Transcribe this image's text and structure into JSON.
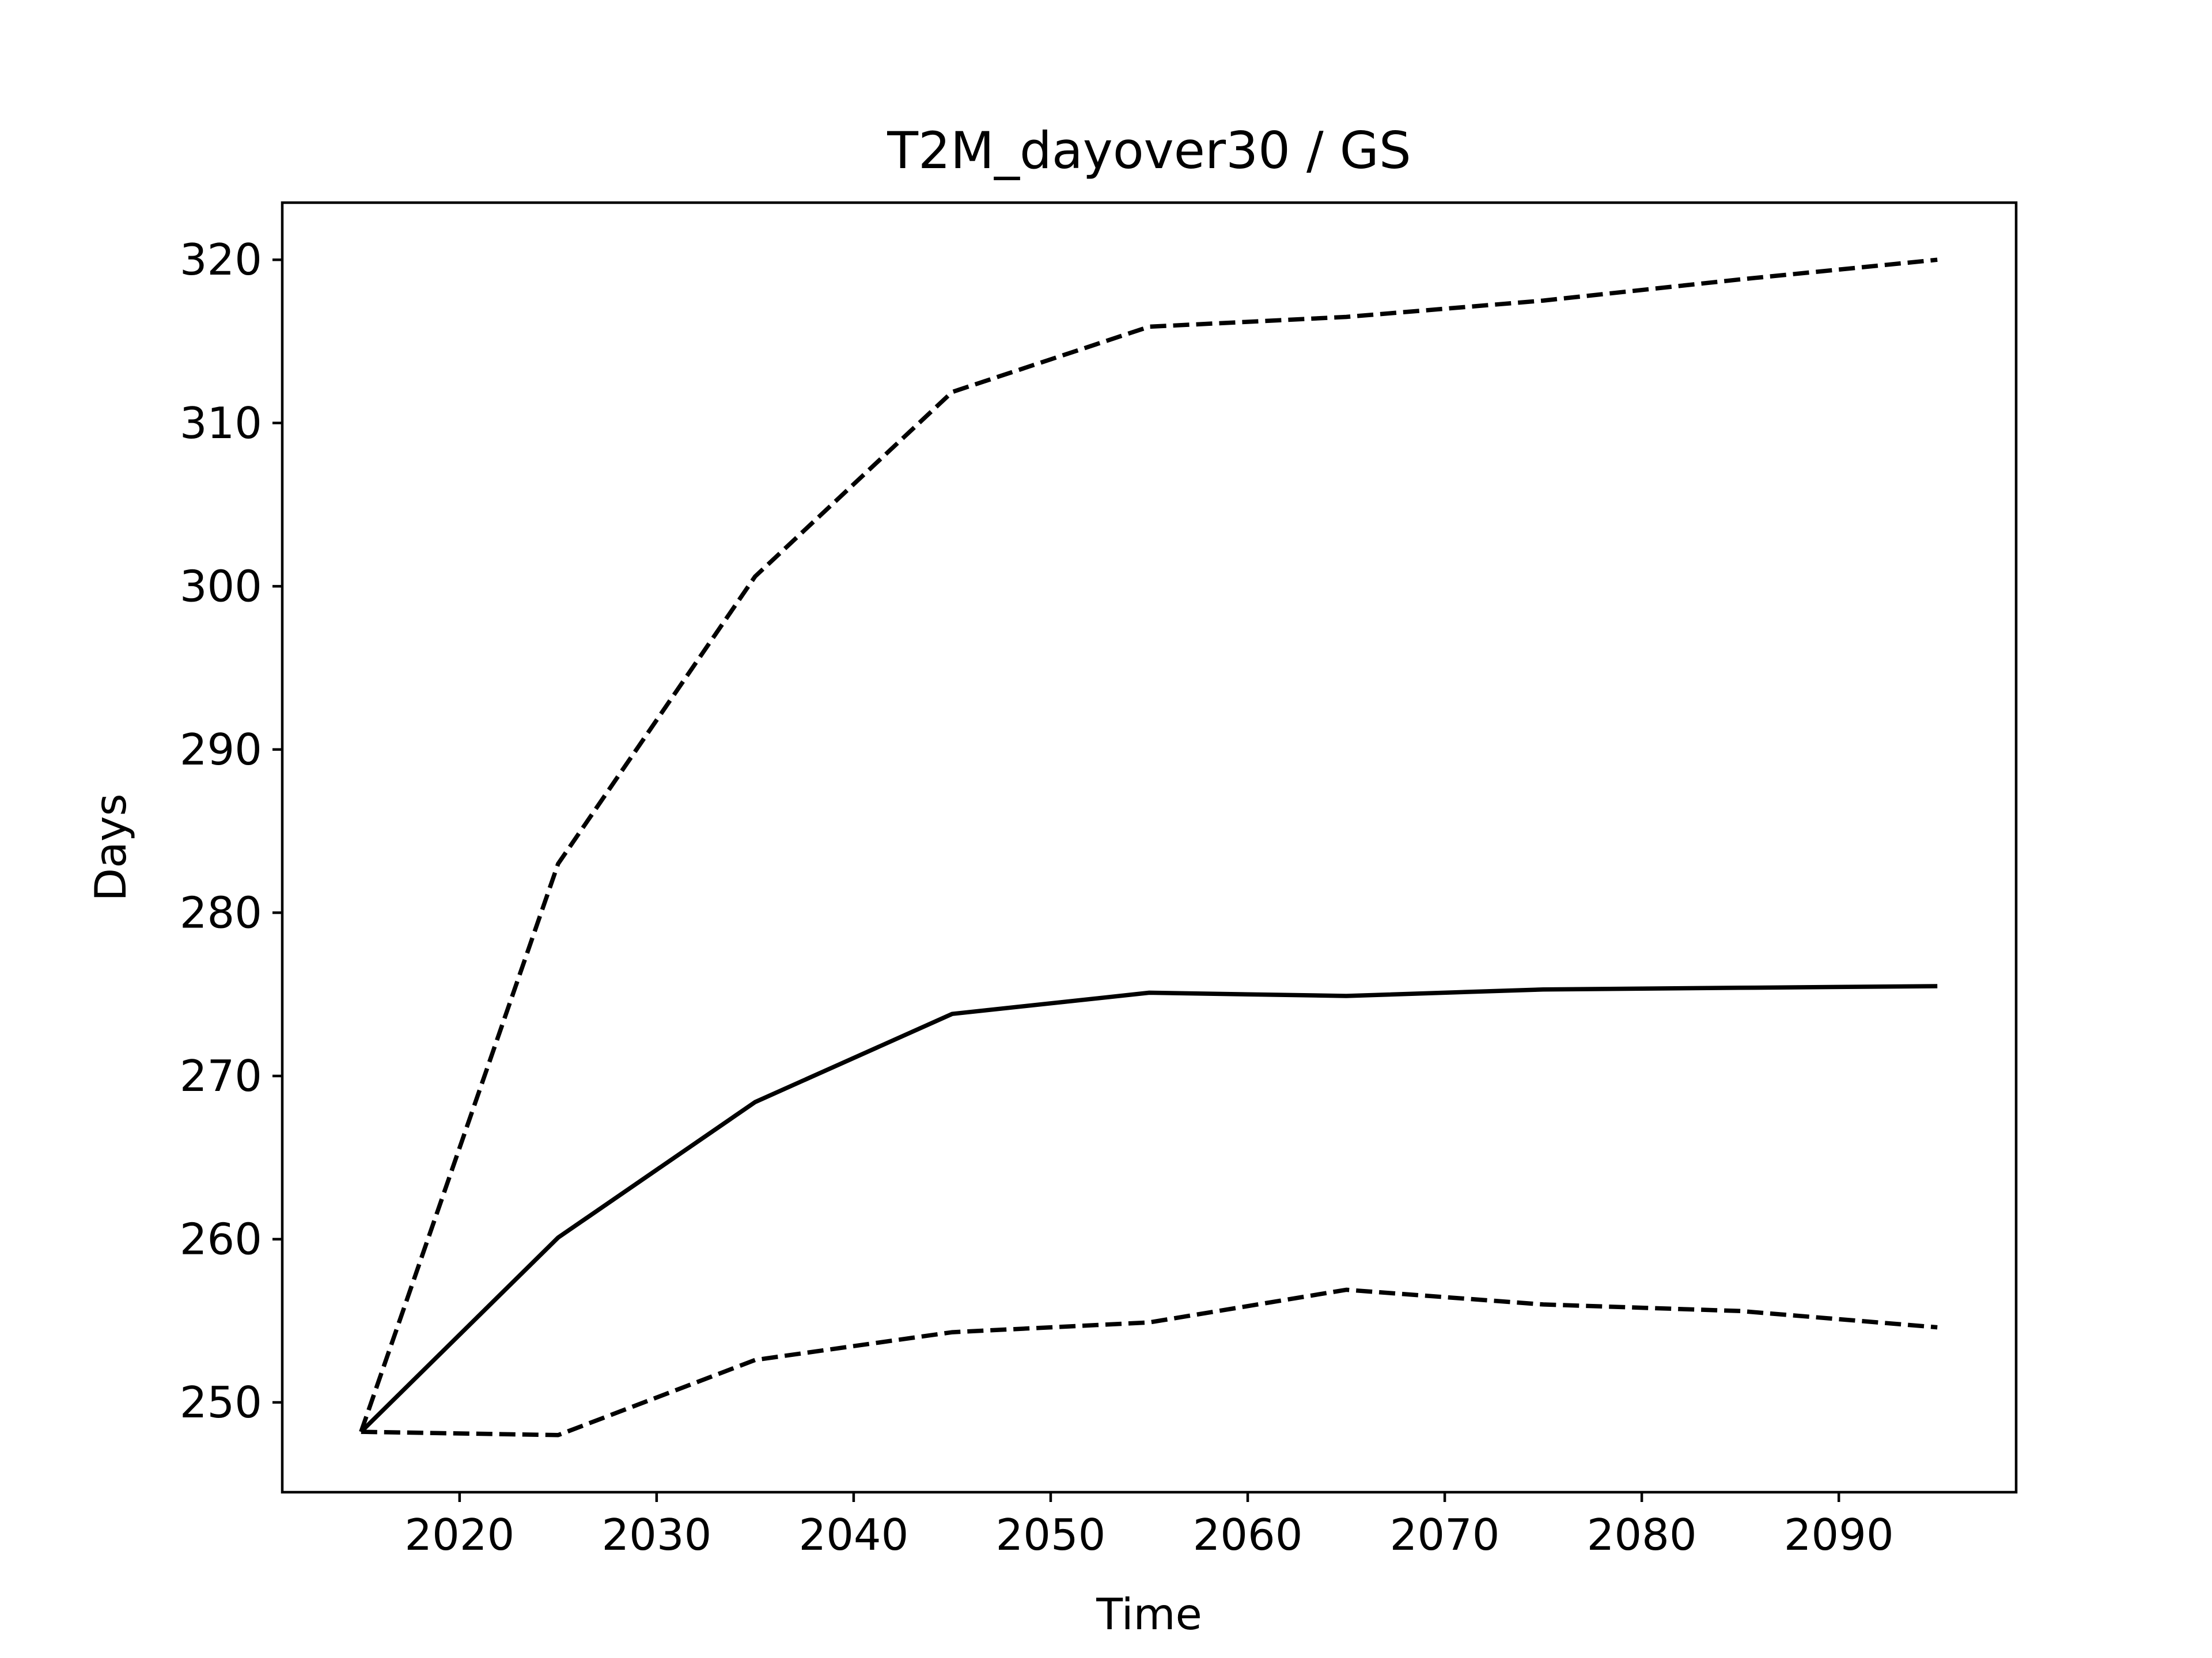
{
  "chart_data": {
    "type": "line",
    "title": "T2M_dayover30 / GS",
    "xlabel": "Time",
    "ylabel": "Days",
    "xlim": [
      2011,
      2099
    ],
    "ylim": [
      244.5,
      323.5
    ],
    "x_ticks": [
      "2020",
      "2030",
      "2040",
      "2050",
      "2060",
      "2070",
      "2080",
      "2090"
    ],
    "y_ticks": [
      "250",
      "260",
      "270",
      "280",
      "290",
      "300",
      "310",
      "320"
    ],
    "grid": false,
    "legend": "none",
    "x": [
      2015,
      2025,
      2035,
      2045,
      2055,
      2065,
      2075,
      2085,
      2095
    ],
    "series": [
      {
        "style": "dashed",
        "color": "#000000",
        "values": [
          248.2,
          283.0,
          300.6,
          311.9,
          315.9,
          316.5,
          317.5,
          318.8,
          320.0
        ]
      },
      {
        "style": "solid",
        "color": "#000000",
        "values": [
          248.2,
          260.1,
          268.4,
          273.8,
          275.1,
          274.9,
          275.3,
          275.4,
          275.5
        ]
      },
      {
        "style": "dashed",
        "color": "#000000",
        "values": [
          248.2,
          248.0,
          252.6,
          254.3,
          254.9,
          256.9,
          256.0,
          255.6,
          254.6
        ]
      }
    ]
  }
}
